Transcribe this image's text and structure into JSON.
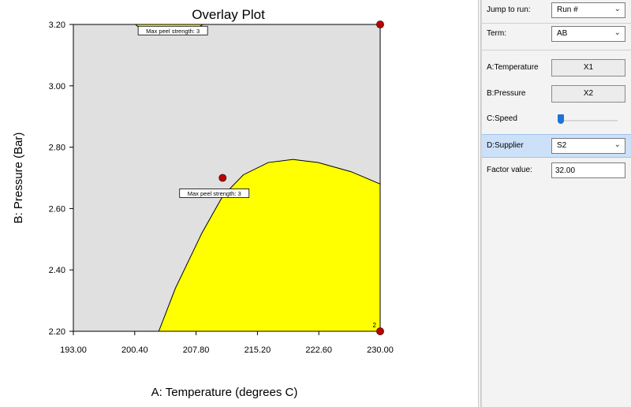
{
  "chart_data": {
    "type": "contour",
    "title": "Overlay Plot",
    "xlabel": "A: Temperature (degrees C)",
    "ylabel": "B: Pressure (Bar)",
    "xlim": [
      193.0,
      230.0
    ],
    "ylim": [
      2.2,
      3.2
    ],
    "x_ticks": [
      "193.00",
      "200.40",
      "207.80",
      "215.20",
      "222.60",
      "230.00"
    ],
    "y_ticks": [
      "2.20",
      "2.40",
      "2.60",
      "2.80",
      "3.00",
      "3.20"
    ],
    "background_color": "#e0e0e0",
    "region_color": "#ffff00",
    "regions": [
      {
        "name": "top",
        "boundary": [
          [
            200.5,
            3.2
          ],
          [
            201.2,
            3.183
          ],
          [
            202.5,
            3.172
          ],
          [
            204.5,
            3.168
          ],
          [
            206.5,
            3.172
          ],
          [
            207.8,
            3.185
          ],
          [
            208.6,
            3.2
          ]
        ]
      },
      {
        "name": "bottom",
        "boundary": [
          [
            203.3,
            2.2
          ],
          [
            205.3,
            2.34
          ],
          [
            208.5,
            2.52
          ],
          [
            211.0,
            2.64
          ],
          [
            213.5,
            2.71
          ],
          [
            216.5,
            2.75
          ],
          [
            219.5,
            2.76
          ],
          [
            222.5,
            2.75
          ],
          [
            226.5,
            2.72
          ],
          [
            230.0,
            2.68
          ],
          [
            230.0,
            2.2
          ]
        ]
      }
    ],
    "annotations": [
      {
        "text": "Max peel strength: 3",
        "x": 205.0,
        "y": 3.18
      },
      {
        "text": "Max peel strength: 3",
        "x": 210.0,
        "y": 2.65
      }
    ],
    "design_points": [
      {
        "x": 230.0,
        "y": 3.2,
        "label": ""
      },
      {
        "x": 211.0,
        "y": 2.7,
        "label": ""
      },
      {
        "x": 230.0,
        "y": 2.2,
        "label": "2"
      }
    ]
  },
  "panel": {
    "jump_to_run": {
      "label": "Jump to run:",
      "value": "Run #"
    },
    "term": {
      "label": "Term:",
      "value": "AB"
    },
    "factor_a": {
      "label": "A:Temperature",
      "button": "X1"
    },
    "factor_b": {
      "label": "B:Pressure",
      "button": "X2"
    },
    "factor_c": {
      "label": "C:Speed",
      "slider_fraction": 0.0
    },
    "factor_d": {
      "label": "D:Supplier",
      "value": "S2"
    },
    "factor_value": {
      "label": "Factor value:",
      "value": "32.00"
    }
  }
}
